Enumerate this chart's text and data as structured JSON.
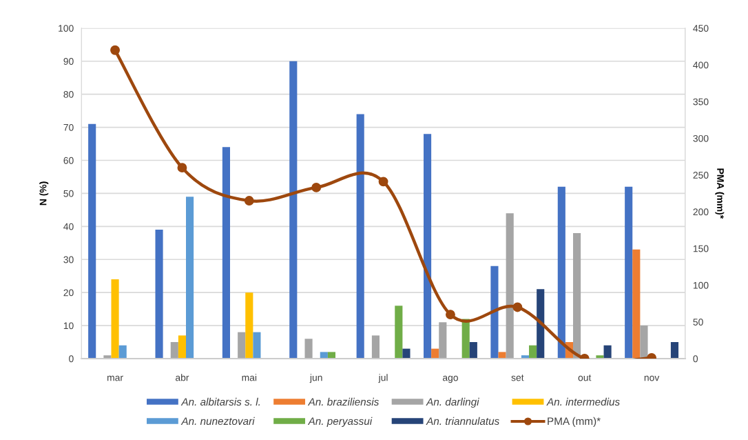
{
  "chart_data": {
    "type": "bar",
    "categories": [
      "mar",
      "abr",
      "mai",
      "jun",
      "jul",
      "ago",
      "set",
      "out",
      "nov"
    ],
    "ylabel": "N (%)",
    "y2label": "PMA (mm)*",
    "ylim": [
      0,
      100
    ],
    "yticks": [
      0,
      10,
      20,
      30,
      40,
      50,
      60,
      70,
      80,
      90,
      100
    ],
    "y2lim": [
      0,
      450
    ],
    "y2ticks": [
      0,
      50,
      100,
      150,
      200,
      250,
      300,
      350,
      400,
      450
    ],
    "grid": "y",
    "legend": "bottom",
    "series": [
      {
        "name": "An. albitarsis s. l.",
        "color": "#4472c4",
        "values": [
          71,
          39,
          64,
          90,
          74,
          68,
          28,
          52,
          52
        ]
      },
      {
        "name": "An. braziliensis",
        "color": "#ed7d31",
        "values": [
          0,
          0,
          0,
          0,
          0,
          3,
          2,
          5,
          33
        ]
      },
      {
        "name": "An. darlingi",
        "color": "#a5a5a5",
        "values": [
          1,
          5,
          8,
          6,
          7,
          11,
          44,
          38,
          10
        ]
      },
      {
        "name": "An. intermedius",
        "color": "#ffc000",
        "values": [
          24,
          7,
          20,
          0,
          0,
          0,
          0,
          0,
          0
        ]
      },
      {
        "name": "An. nuneztovari",
        "color": "#5b9bd5",
        "values": [
          4,
          49,
          8,
          2,
          0,
          0,
          1,
          0,
          0
        ]
      },
      {
        "name": "An. peryassui",
        "color": "#70ad47",
        "values": [
          0,
          0,
          0,
          2,
          16,
          12,
          4,
          1,
          0
        ]
      },
      {
        "name": "An. triannulatus",
        "color": "#264478",
        "values": [
          0,
          0,
          0,
          0,
          3,
          5,
          21,
          4,
          5
        ]
      },
      {
        "name": "PMA (mm)*",
        "type": "line",
        "axis": "y2",
        "color": "#9e480e",
        "marker": "circle",
        "values": [
          420,
          260,
          215,
          233,
          241,
          60,
          70,
          0,
          1
        ]
      }
    ]
  }
}
